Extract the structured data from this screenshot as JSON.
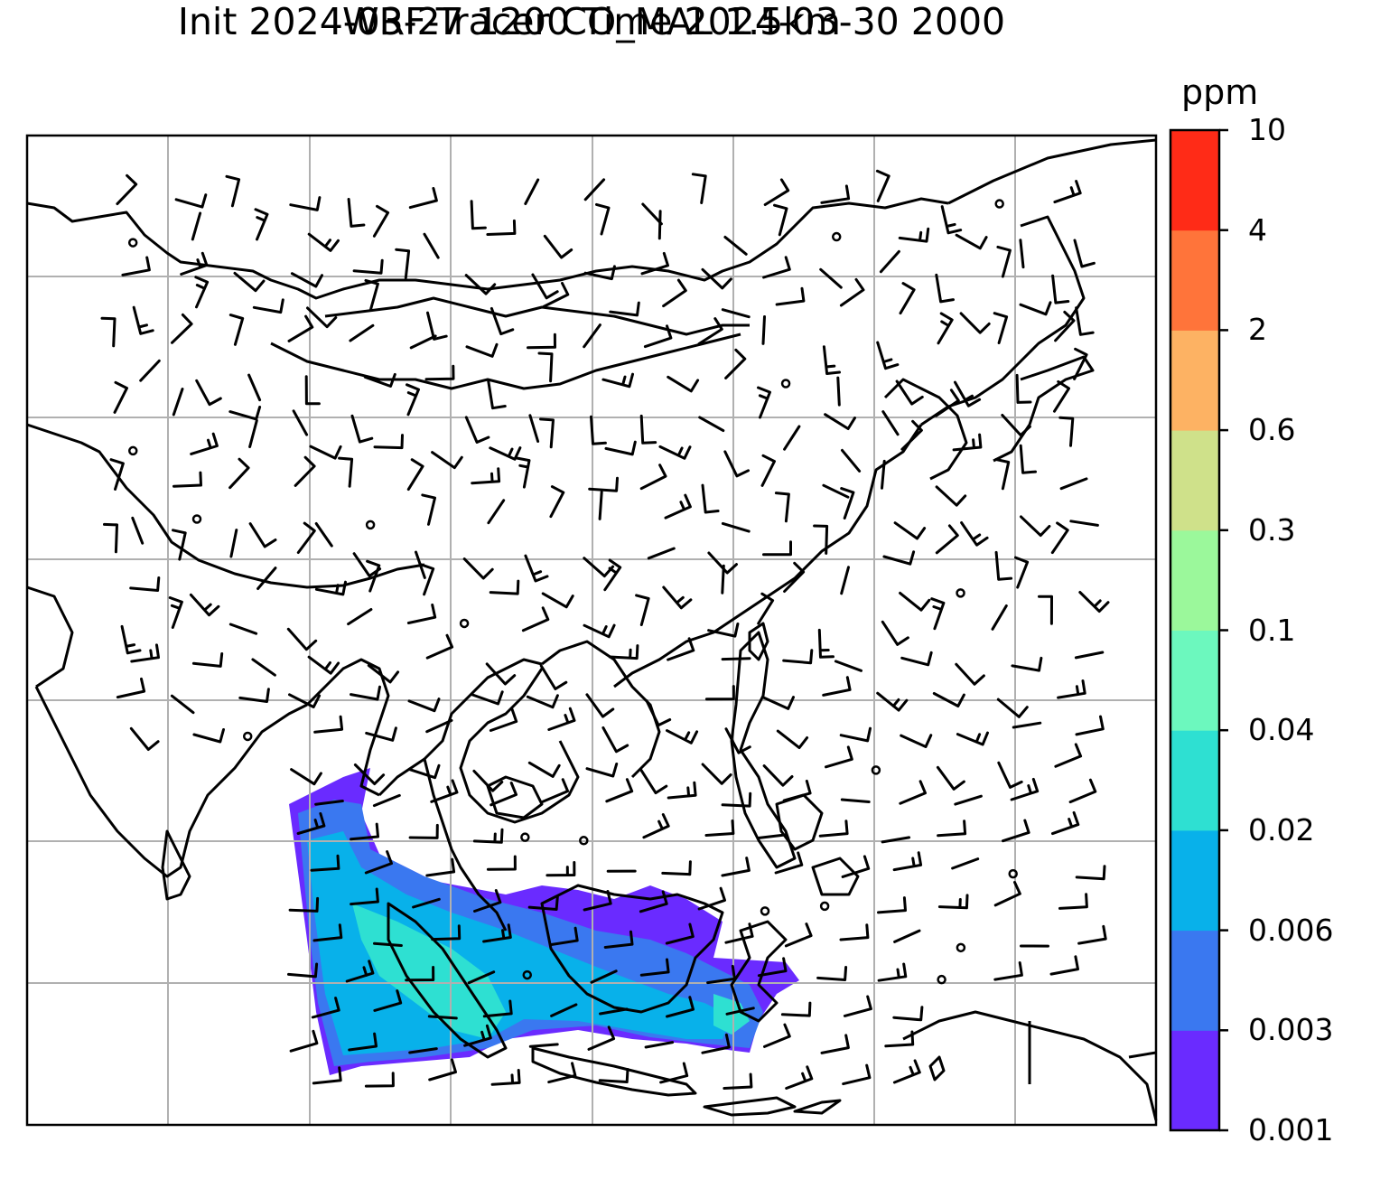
{
  "title": {
    "line1": "WRF-Tracer CO_MAL 1.5km",
    "line2": "Init 2024-03-27 1200 Time 2024-03-30 2000"
  },
  "colorbar": {
    "unit": "ppm",
    "ticks": [
      "0.001",
      "0.003",
      "0.006",
      "0.02",
      "0.04",
      "0.1",
      "0.3",
      "0.6",
      "2",
      "4",
      "10"
    ],
    "colors": [
      "#6a2bff",
      "#3a78f0",
      "#08b1ea",
      "#2ee0d2",
      "#6cf8be",
      "#9bf89b",
      "#cfe18a",
      "#fdb263",
      "#ff743a",
      "#ff2b17"
    ]
  },
  "map": {
    "gridlines": "on",
    "plume_colors": {
      "low": "#6a2bff",
      "mid": "#3a78f0",
      "high": "#08b1ea",
      "peak": "#2ee0d2"
    }
  }
}
